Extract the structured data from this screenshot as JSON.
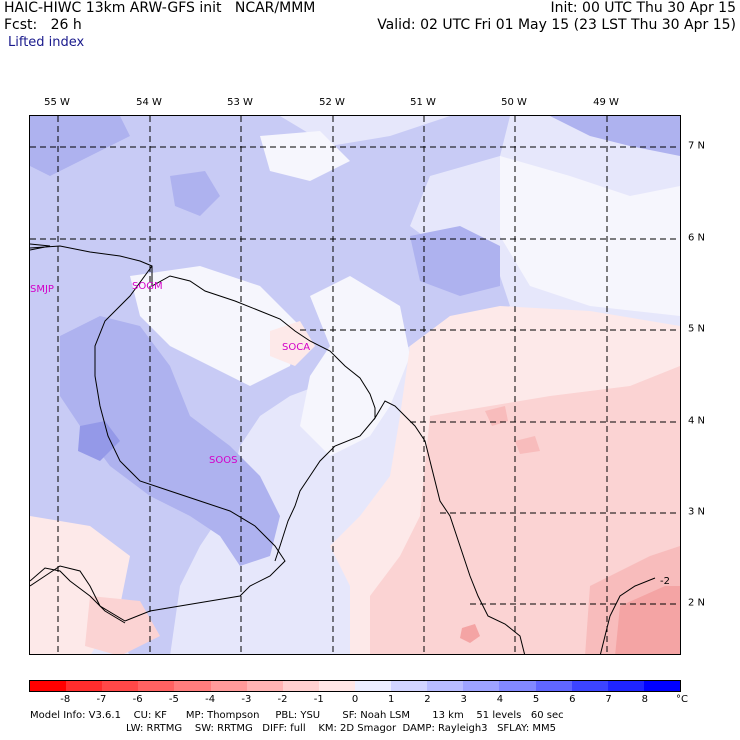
{
  "header": {
    "title": "HAIC-HIWC 13km ARW-GFS init   NCAR/MMM",
    "forecast": "Fcst:   26 h",
    "field": "Lifted index",
    "init": "Init: 00 UTC Thu 30 Apr 15",
    "valid": "Valid: 02 UTC Fri 01 May 15 (23 LST Thu 30 Apr 15)"
  },
  "axes": {
    "longitude_labels": [
      "55 W",
      "54 W",
      "53 W",
      "52 W",
      "51 W",
      "50 W",
      "49 W"
    ],
    "latitude_labels": [
      "7 N",
      "6 N",
      "5 N",
      "4 N",
      "3 N",
      "2 N"
    ]
  },
  "stations": [
    "SMJP",
    "SOGM",
    "SOCA",
    "SOOS"
  ],
  "contour_label": "-2",
  "colorbar": {
    "unit": "°C",
    "tick_labels": [
      "-8",
      "-7",
      "-6",
      "-5",
      "-4",
      "-3",
      "-2",
      "-1",
      "0",
      "1",
      "2",
      "3",
      "4",
      "5",
      "6",
      "7",
      "8"
    ],
    "colors": [
      "#ff0000",
      "#ff2d2d",
      "#ff4848",
      "#ff6262",
      "#ff7d7d",
      "#ff9a9a",
      "#ffb4b4",
      "#ffd0d0",
      "#ffe6e6",
      "#ecedff",
      "#d2d4ff",
      "#b8bcff",
      "#9ea3ff",
      "#8288ff",
      "#6066ff",
      "#3c44ff",
      "#1f25ff",
      "#0000ff"
    ]
  },
  "field_colors": {
    "light_blue": "#e6e7fb",
    "blue_1": "#c8cbf5",
    "blue_2": "#aeb2ef",
    "blue_3": "#9499e8",
    "white": "#f6f6fd",
    "pink_1": "#fde9e9",
    "pink_2": "#fbd3d3",
    "pink_3": "#f8bcbc",
    "pink_4": "#f4a4a4"
  },
  "footer": {
    "line1": "Model Info: V3.6.1    CU: KF      MP: Thompson     PBL: YSU       SF: Noah LSM       13 km    51 levels   60 sec",
    "line2": "LW: RRTMG    SW: RRTMG   DIFF: full    KM: 2D Smagor  DAMP: Rayleigh3   SFLAY: MM5"
  }
}
